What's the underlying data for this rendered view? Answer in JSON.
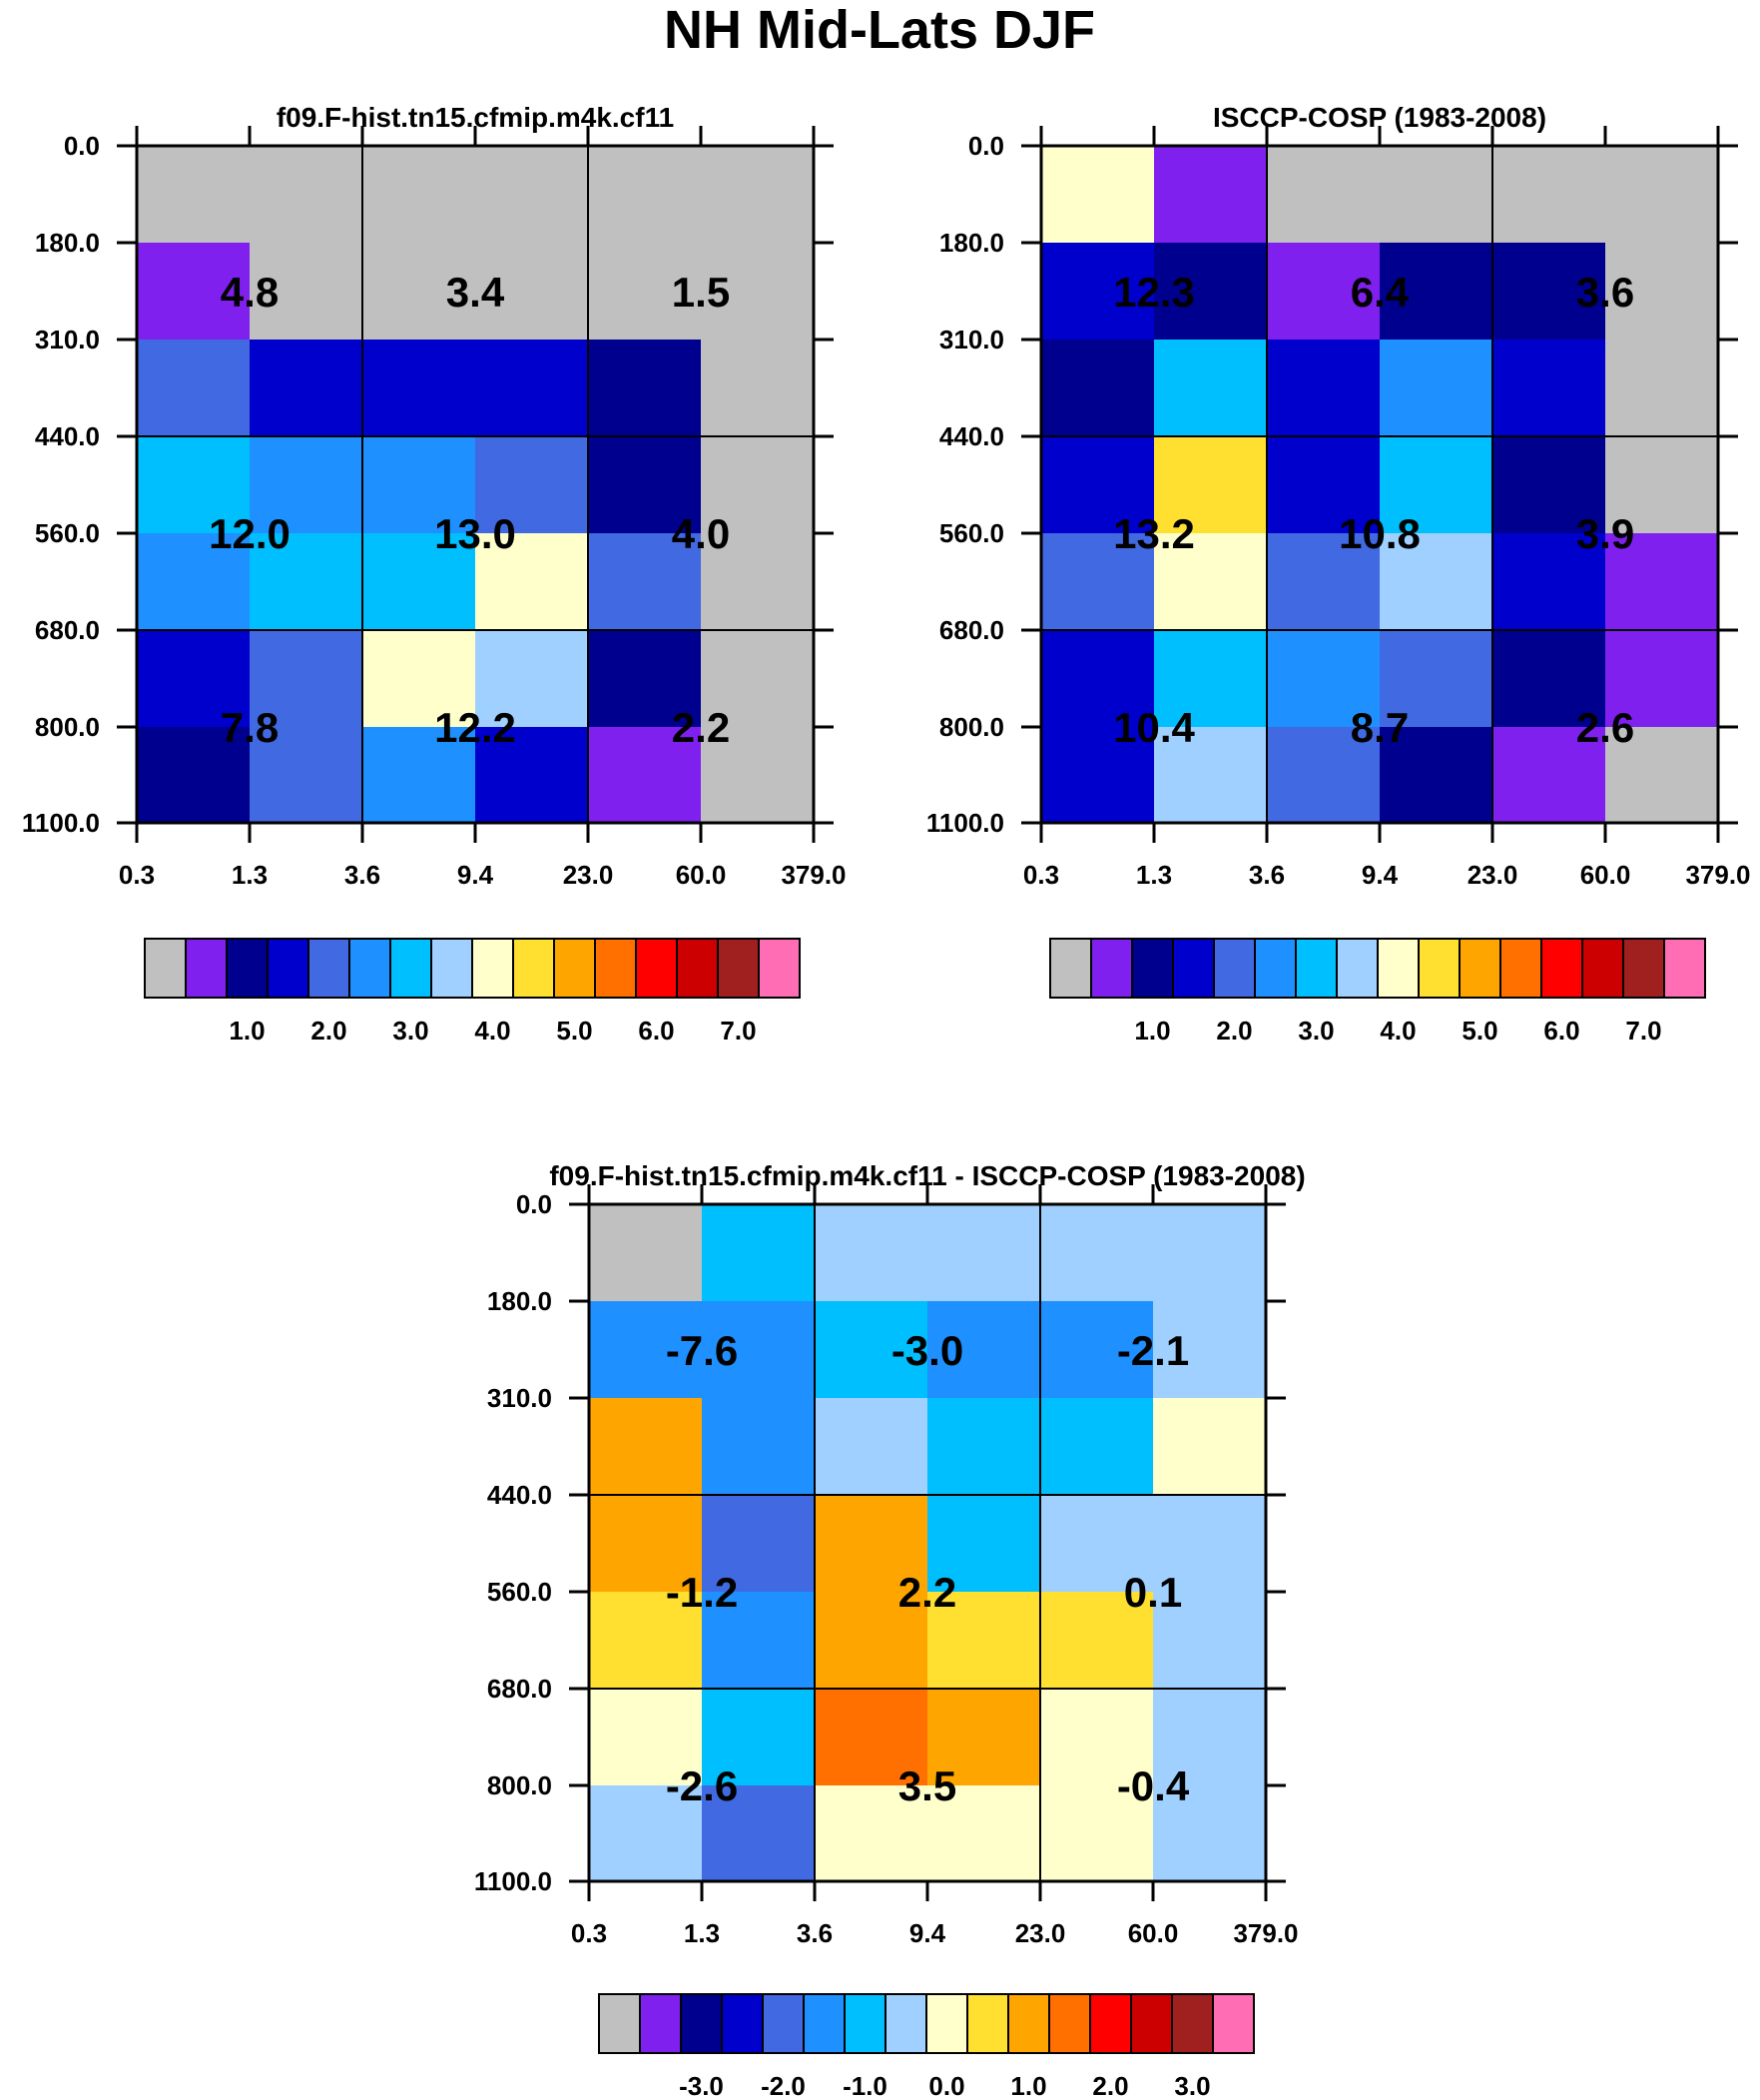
{
  "title": "NH Mid-Lats DJF",
  "colors": {
    "palette": [
      "#c0c0c0",
      "#8020ee",
      "#00008f",
      "#0000cd",
      "#4169e1",
      "#1e90ff",
      "#00bfff",
      "#a0d0ff",
      "#ffffcc",
      "#ffe030",
      "#ffa500",
      "#ff7000",
      "#ff0000",
      "#cc0000",
      "#a02020",
      "#ff6eb4"
    ],
    "panel_bg": "#c0c0c0",
    "grid": "#000000"
  },
  "chart_data": [
    {
      "type": "heatmap",
      "title": "f09.F-hist.tn15.cfmip.m4k.cf11",
      "x_tick_labels": [
        "0.3",
        "1.3",
        "3.6",
        "9.4",
        "23.0",
        "60.0",
        "379.0"
      ],
      "y_tick_labels": [
        "0.0",
        "180.0",
        "310.0",
        "440.0",
        "560.0",
        "680.0",
        "800.0",
        "1100.0"
      ],
      "cell_color_index": [
        [
          0,
          0,
          0,
          0,
          0,
          0
        ],
        [
          1,
          0,
          0,
          0,
          0,
          0
        ],
        [
          4,
          3,
          3,
          3,
          2,
          0
        ],
        [
          6,
          5,
          5,
          4,
          2,
          0
        ],
        [
          5,
          6,
          6,
          8,
          4,
          0
        ],
        [
          3,
          4,
          8,
          7,
          2,
          0
        ],
        [
          2,
          4,
          5,
          3,
          1,
          0
        ]
      ],
      "labels": [
        "4.8",
        "3.4",
        "1.5",
        "12.0",
        "13.0",
        "4.0",
        "7.8",
        "12.2",
        "2.2"
      ],
      "colorbar": {
        "tick_labels": [
          "1.0",
          "2.0",
          "3.0",
          "4.0",
          "5.0",
          "6.0",
          "7.0"
        ],
        "levels": [
          0,
          0.5,
          1,
          1.5,
          2,
          2.5,
          3,
          3.5,
          4,
          4.5,
          5,
          5.5,
          6,
          6.5,
          7
        ]
      }
    },
    {
      "type": "heatmap",
      "title": "ISCCP-COSP (1983-2008)",
      "x_tick_labels": [
        "0.3",
        "1.3",
        "3.6",
        "9.4",
        "23.0",
        "60.0",
        "379.0"
      ],
      "y_tick_labels": [
        "0.0",
        "180.0",
        "310.0",
        "440.0",
        "560.0",
        "680.0",
        "800.0",
        "1100.0"
      ],
      "cell_color_index": [
        [
          8,
          1,
          0,
          0,
          0,
          0
        ],
        [
          3,
          2,
          1,
          2,
          2,
          0
        ],
        [
          2,
          6,
          3,
          5,
          3,
          0
        ],
        [
          3,
          9,
          3,
          6,
          2,
          0
        ],
        [
          4,
          8,
          4,
          7,
          3,
          1
        ],
        [
          3,
          6,
          5,
          4,
          2,
          1
        ],
        [
          3,
          7,
          4,
          2,
          1,
          0
        ]
      ],
      "labels": [
        "12.3",
        "6.4",
        "3.6",
        "13.2",
        "10.8",
        "3.9",
        "10.4",
        "8.7",
        "2.6"
      ],
      "colorbar": {
        "tick_labels": [
          "1.0",
          "2.0",
          "3.0",
          "4.0",
          "5.0",
          "6.0",
          "7.0"
        ],
        "levels": [
          0,
          0.5,
          1,
          1.5,
          2,
          2.5,
          3,
          3.5,
          4,
          4.5,
          5,
          5.5,
          6,
          6.5,
          7
        ]
      }
    },
    {
      "type": "heatmap",
      "title": "f09.F-hist.tn15.cfmip.m4k.cf11 - ISCCP-COSP (1983-2008)",
      "x_tick_labels": [
        "0.3",
        "1.3",
        "3.6",
        "9.4",
        "23.0",
        "60.0",
        "379.0"
      ],
      "y_tick_labels": [
        "0.0",
        "180.0",
        "310.0",
        "440.0",
        "560.0",
        "680.0",
        "800.0",
        "1100.0"
      ],
      "cell_color_index": [
        [
          0,
          6,
          7,
          7,
          7,
          7
        ],
        [
          5,
          5,
          6,
          5,
          5,
          7
        ],
        [
          10,
          5,
          7,
          6,
          6,
          8
        ],
        [
          10,
          4,
          10,
          6,
          7,
          7
        ],
        [
          9,
          5,
          10,
          9,
          9,
          7
        ],
        [
          8,
          6,
          11,
          10,
          8,
          7
        ],
        [
          7,
          4,
          8,
          8,
          8,
          7
        ]
      ],
      "labels": [
        "-7.6",
        "-3.0",
        "-2.1",
        "-1.2",
        "2.2",
        "0.1",
        "-2.6",
        "3.5",
        "-0.4"
      ],
      "colorbar": {
        "tick_labels": [
          "-3.0",
          "-2.0",
          "-1.0",
          "0.0",
          "1.0",
          "2.0",
          "3.0"
        ],
        "levels": [
          -3.5,
          -3,
          -2.5,
          -2,
          -1.5,
          -1,
          -0.5,
          0,
          0.5,
          1,
          1.5,
          2,
          2.5,
          3,
          3.5
        ]
      }
    }
  ]
}
